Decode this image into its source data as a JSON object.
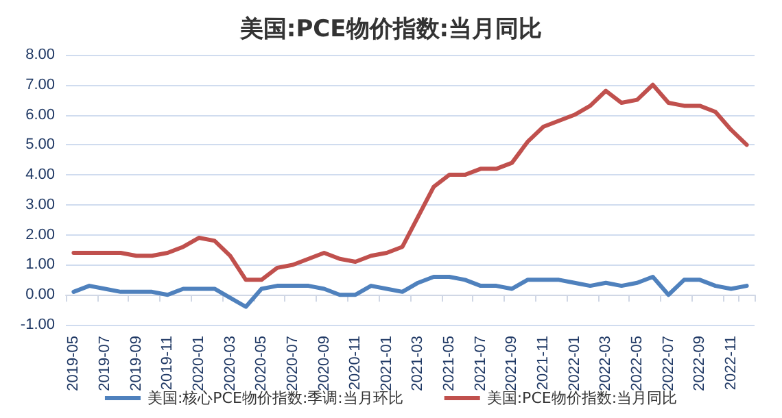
{
  "chart_data": {
    "type": "line",
    "title": "美国:PCE物价指数:当月同比",
    "categories": [
      "2019-05",
      null,
      "2019-07",
      null,
      "2019-09",
      null,
      "2019-11",
      null,
      "2020-01",
      null,
      "2020-03",
      null,
      "2020-05",
      null,
      "2020-07",
      null,
      "2020-09",
      null,
      "2020-11",
      null,
      "2021-01",
      null,
      "2021-03",
      null,
      "2021-05",
      null,
      "2021-07",
      null,
      "2021-09",
      null,
      "2021-11",
      null,
      "2022-01",
      null,
      "2022-03",
      null,
      "2022-05",
      null,
      "2022-07",
      null,
      "2022-09",
      null,
      "2022-11",
      null
    ],
    "series": [
      {
        "name": "美国:核心PCE物价指数:季调:当月环比",
        "color": "#4f81bd",
        "values": [
          0.1,
          0.3,
          0.2,
          0.1,
          0.1,
          0.1,
          0.0,
          0.2,
          0.2,
          0.2,
          -0.1,
          -0.4,
          0.2,
          0.3,
          0.3,
          0.3,
          0.2,
          0.0,
          0.0,
          0.3,
          0.2,
          0.1,
          0.4,
          0.6,
          0.6,
          0.5,
          0.3,
          0.3,
          0.2,
          0.5,
          0.5,
          0.5,
          0.4,
          0.3,
          0.4,
          0.3,
          0.4,
          0.6,
          0.0,
          0.5,
          0.5,
          0.3,
          0.2,
          0.3
        ]
      },
      {
        "name": "美国:PCE物价指数:当月同比",
        "color": "#c0504d",
        "values": [
          1.4,
          1.4,
          1.4,
          1.4,
          1.3,
          1.3,
          1.4,
          1.6,
          1.9,
          1.8,
          1.3,
          0.5,
          0.5,
          0.9,
          1.0,
          1.2,
          1.4,
          1.2,
          1.1,
          1.3,
          1.4,
          1.6,
          2.6,
          3.6,
          4.0,
          4.0,
          4.2,
          4.2,
          4.4,
          5.1,
          5.6,
          5.8,
          6.0,
          6.3,
          6.8,
          6.4,
          6.5,
          7.0,
          6.4,
          6.3,
          6.3,
          6.1,
          5.5,
          5.0
        ]
      }
    ],
    "ylim": [
      -1,
      8
    ],
    "yticks": [
      {
        "value": -1,
        "label": "-1.00"
      },
      {
        "value": 0,
        "label": "0.00"
      },
      {
        "value": 1,
        "label": "1.00"
      },
      {
        "value": 2,
        "label": "2.00"
      },
      {
        "value": 3,
        "label": "3.00"
      },
      {
        "value": 4,
        "label": "4.00"
      },
      {
        "value": 5,
        "label": "5.00"
      },
      {
        "value": 6,
        "label": "6.00"
      },
      {
        "value": 7,
        "label": "7.00"
      },
      {
        "value": 8,
        "label": "8.00"
      }
    ],
    "grid": "y",
    "legend": "bottom",
    "marker": "none",
    "line_style": "solid"
  }
}
